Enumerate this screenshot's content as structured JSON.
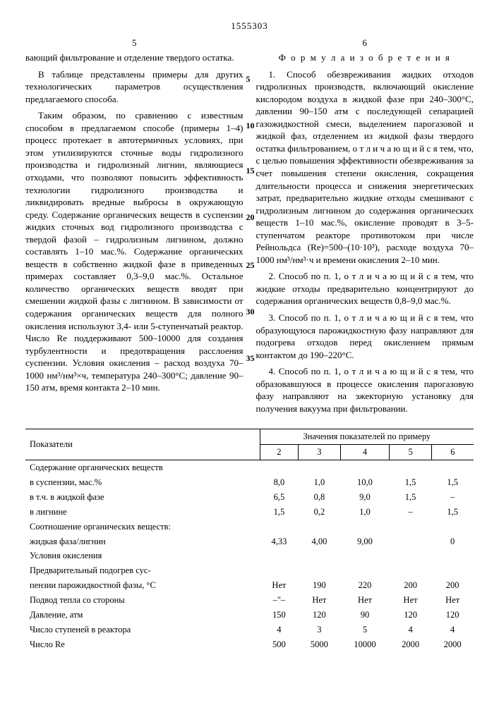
{
  "pageno": "1555303",
  "colnum_left": "5",
  "colnum_right": "6",
  "left": {
    "p1": "вающий фильтрование и отделение твердого остатка.",
    "p2": "В таблице представлены примеры для других технологических параметров осуществления предлагаемого способа.",
    "p3": "Таким образом, по сравнению с известным способом в предлагаемом способе (примеры 1–4) процесс протекает в автотермичных условиях, при этом утилизируются сточные воды гидролизного производства и гидролизный лигнин, являющиеся отходами, что позволяют повысить эффективность технологии гидролизного производства и ликвидировать вредные выбросы в окружающую среду. Содержание органических веществ в суспензии жидких сточных вод гидролизного производства с твердой фазой – гидролизным лигнином, должно составлять 1–10 мас.%. Содержание органических веществ в собственно жидкой фазе в приведенных примерах составляет 0,3–9,0 мас.%. Остальное количество органических веществ вводят при смешении жидкой фазы с лигнином. В зависимости от содержания органических веществ для полного окисления используют 3,4- или 5-ступенчатый реактор. Число Re поддерживают 500–10000 для создания турбулентности и предотвращения расслоения суспензии. Условия окисления – расход воздуха 70–1000 нм³/нм³×ч, температура 240–300°С; давление 90–150 атм, время контакта 2–10 мин."
  },
  "right": {
    "formula_title": "Ф о р м у л а   и з о б р е т е н и я",
    "p1": "1. Способ обезвреживания жидких отходов гидролизных производств, включающий окисление кислородом воздуха в жидкой фазе при 240–300°С, давлении 90–150 атм с последующей сепарацией газожидкостной смеси, выделением парогазовой и жидкой фаз, отделением из жидкой фазы твердого остатка фильтрованием, о т л и ч а ю щ и й с я  тем, что, с целью повышения эффективности обезвреживания за счет повышения степени окисления, сокращения длительности процесса и снижения энергетических затрат, предварительно жидкие отходы смешивают с гидролизным лигнином до содержания органических веществ 1–10 мас.%, окисление проводят в 3–5-ступенчатом реакторе противотоком при числе Рейнольдса (Re)=500–(10·10³), расходе воздуха 70–1000 нм³/нм³·ч и времени окисления 2–10 мин.",
    "p2": "2. Способ по п. 1, о т л и ч а ю щ и й с я  тем, что жидкие отходы предварительно концентрируют до содержания органических веществ 0,8–9,0 мас.%.",
    "p3": "3. Способ по п. 1, о т л и ч а ю щ и й с я  тем, что образующуюся парожидкостную фазу направляют для подогрева отходов перед окислением прямым контактом до 190–220°С.",
    "p4": "4. Способ по п. 1, о т л и ч а ю щ и й с я  тем, что образовавшуюся в процессе окисления парогазовую фазу направляют на эжекторную установку для получения вакуума при фильтровании."
  },
  "line_numbers": [
    "5",
    "10",
    "15",
    "20",
    "25",
    "30",
    "35"
  ],
  "table": {
    "head_ind": "Показатели",
    "head_val": "Значения показателей по примеру",
    "cols": [
      "2",
      "3",
      "4",
      "5",
      "6"
    ],
    "rows": [
      {
        "label": "Содержание органических веществ",
        "vals": [
          "",
          "",
          "",
          "",
          ""
        ]
      },
      {
        "label": "в суспензии, мас.%",
        "indent": 1,
        "vals": [
          "8,0",
          "1,0",
          "10,0",
          "1,5",
          "1,5"
        ]
      },
      {
        "label": "в т.ч. в жидкой фазе",
        "indent": 1,
        "vals": [
          "6,5",
          "0,8",
          "9,0",
          "1,5",
          "–"
        ]
      },
      {
        "label": "в лигнине",
        "indent": 1,
        "vals": [
          "1,5",
          "0,2",
          "1,0",
          "–",
          "1,5"
        ]
      },
      {
        "label": "Соотношение органических веществ:",
        "vals": [
          "",
          "",
          "",
          "",
          ""
        ]
      },
      {
        "label": "жидкая фаза/лигнин",
        "vals": [
          "4,33",
          "4,00",
          "9,00",
          "",
          "0"
        ]
      },
      {
        "label": "Условия окисления",
        "indent": 1,
        "vals": [
          "",
          "",
          "",
          "",
          ""
        ]
      },
      {
        "label": "Предварительный подогрев сус-",
        "indent": 1,
        "vals": [
          "",
          "",
          "",
          "",
          ""
        ]
      },
      {
        "label": "пензии парожидкостной фазы, °С",
        "indent": 1,
        "vals": [
          "Нет",
          "190",
          "220",
          "200",
          "200"
        ]
      },
      {
        "label": "Подвод тепла со стороны",
        "indent": 1,
        "vals": [
          "–\"–",
          "Нет",
          "Нет",
          "Нет",
          "Нет"
        ]
      },
      {
        "label": "Давление, атм",
        "indent": 1,
        "vals": [
          "150",
          "120",
          "90",
          "120",
          "120"
        ]
      },
      {
        "label": "Число ступеней в реактора",
        "indent": 1,
        "vals": [
          "4",
          "3",
          "5",
          "4",
          "4"
        ]
      },
      {
        "label": "Число Re",
        "indent": 1,
        "vals": [
          "500",
          "5000",
          "10000",
          "2000",
          "2000"
        ]
      }
    ]
  }
}
